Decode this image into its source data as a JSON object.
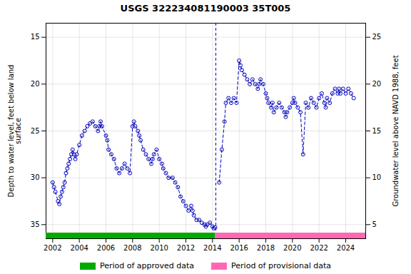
{
  "chart_data": {
    "type": "line",
    "title": "USGS 322234081190003 35T005",
    "ylabel": "Depth to water level, feet below land\nsurface",
    "y2label": "Groundwater level above NAVD 1988, feet",
    "x": [
      2002.0,
      2002.1,
      2002.2,
      2002.4,
      2002.5,
      2002.6,
      2002.7,
      2002.8,
      2002.9,
      2003.0,
      2003.1,
      2003.2,
      2003.3,
      2003.4,
      2003.5,
      2003.6,
      2003.7,
      2003.8,
      2004.0,
      2004.2,
      2004.4,
      2004.6,
      2004.8,
      2005.0,
      2005.2,
      2005.4,
      2005.5,
      2005.6,
      2005.7,
      2006.0,
      2006.1,
      2006.2,
      2006.4,
      2006.6,
      2006.8,
      2007.0,
      2007.2,
      2007.4,
      2007.6,
      2007.8,
      2008.0,
      2008.1,
      2008.2,
      2008.4,
      2008.5,
      2008.6,
      2008.8,
      2009.0,
      2009.2,
      2009.4,
      2009.5,
      2009.6,
      2009.8,
      2010.0,
      2010.2,
      2010.3,
      2010.5,
      2010.7,
      2011.0,
      2011.2,
      2011.4,
      2011.6,
      2011.8,
      2012.0,
      2012.2,
      2012.4,
      2012.5,
      2012.6,
      2012.8,
      2013.0,
      2013.2,
      2013.4,
      2013.5,
      2013.6,
      2013.8,
      2014.0,
      2014.1,
      2014.2,
      2014.5,
      2014.7,
      2014.9,
      2015.0,
      2015.2,
      2015.4,
      2015.6,
      2015.8,
      2016.0,
      2016.1,
      2016.2,
      2016.4,
      2016.6,
      2016.8,
      2017.0,
      2017.2,
      2017.4,
      2017.5,
      2017.6,
      2017.8,
      2018.0,
      2018.1,
      2018.2,
      2018.4,
      2018.5,
      2018.6,
      2018.8,
      2019.0,
      2019.2,
      2019.4,
      2019.5,
      2019.6,
      2019.8,
      2020.0,
      2020.1,
      2020.2,
      2020.4,
      2020.6,
      2020.8,
      2021.0,
      2021.2,
      2021.4,
      2021.6,
      2021.8,
      2022.0,
      2022.2,
      2022.4,
      2022.5,
      2022.6,
      2022.8,
      2023.0,
      2023.2,
      2023.4,
      2023.5,
      2023.6,
      2023.8,
      2024.0,
      2024.2,
      2024.4,
      2024.6
    ],
    "values": [
      30.5,
      31.0,
      31.5,
      32.5,
      32.8,
      32.0,
      31.5,
      31.0,
      30.5,
      29.5,
      29.0,
      28.5,
      28.0,
      27.5,
      27.0,
      27.5,
      28.0,
      27.5,
      26.5,
      25.5,
      25.0,
      24.5,
      24.2,
      24.0,
      24.5,
      25.0,
      24.5,
      24.0,
      24.5,
      25.5,
      26.0,
      27.0,
      27.5,
      28.0,
      29.0,
      29.5,
      29.0,
      28.5,
      29.0,
      29.5,
      24.5,
      24.0,
      24.5,
      25.0,
      25.5,
      26.0,
      27.0,
      27.5,
      28.0,
      28.5,
      28.0,
      27.5,
      27.0,
      28.0,
      28.5,
      29.0,
      29.5,
      30.0,
      30.0,
      30.5,
      31.0,
      32.0,
      32.5,
      33.0,
      33.5,
      33.0,
      33.5,
      34.0,
      34.5,
      34.5,
      34.8,
      35.0,
      35.2,
      35.0,
      34.8,
      35.2,
      35.4,
      35.3,
      30.5,
      27.0,
      24.0,
      22.0,
      21.5,
      22.0,
      21.5,
      22.0,
      17.5,
      18.0,
      18.5,
      19.0,
      19.5,
      20.0,
      19.5,
      20.0,
      20.5,
      20.0,
      19.5,
      20.0,
      21.0,
      21.5,
      22.0,
      22.5,
      22.0,
      23.0,
      22.5,
      22.0,
      22.5,
      23.0,
      23.5,
      23.0,
      22.5,
      22.0,
      21.5,
      22.0,
      22.5,
      23.0,
      27.5,
      22.0,
      22.5,
      21.5,
      22.0,
      22.5,
      21.5,
      21.0,
      22.0,
      22.5,
      21.5,
      22.0,
      21.0,
      20.5,
      21.0,
      20.5,
      21.0,
      20.5,
      21.0,
      20.5,
      21.0,
      21.5
    ],
    "color": "#0000BB",
    "marker": "circle",
    "line_style": "dashed",
    "xlim": [
      2001.5,
      2025.5
    ],
    "xticks": [
      2002,
      2004,
      2006,
      2008,
      2010,
      2012,
      2014,
      2016,
      2018,
      2020,
      2022,
      2024
    ],
    "ylim": [
      36.5,
      13.5
    ],
    "yticks": [
      15,
      20,
      25,
      30,
      35
    ],
    "y2lim": [
      3.5,
      26.5
    ],
    "y2ticks": [
      25,
      20,
      15,
      10,
      5
    ],
    "grid": true,
    "gap_x": 2014.25,
    "periods": [
      {
        "name": "Period of approved data",
        "color": "#00AA00",
        "range": [
          2001.5,
          2014.2
        ]
      },
      {
        "name": "Period of provisional data",
        "color": "#FF69B4",
        "range": [
          2014.2,
          2025.5
        ]
      }
    ],
    "legend": "bottom"
  }
}
